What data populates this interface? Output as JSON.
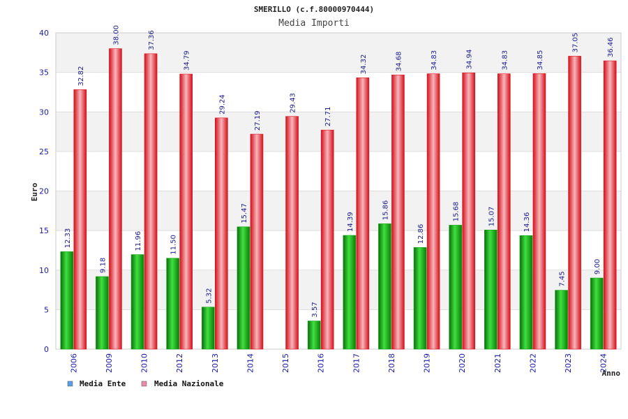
{
  "colors": {
    "series_ente": "#16a316",
    "series_nazionale": "#e0141e",
    "legend_ente": "#5aa0e6",
    "legend_nazionale": "#e88aa8",
    "tick_text": "#1a1aa6",
    "band": "#f2f2f2"
  },
  "chart_data": {
    "type": "bar",
    "title": "SMERILLO (c.f.80000970444)",
    "subtitle": "Media Importi",
    "xlabel": "Anno",
    "ylabel": "Euro",
    "ylim": [
      0,
      40
    ],
    "yticks": [
      0,
      5,
      10,
      15,
      20,
      25,
      30,
      35,
      40
    ],
    "grid": true,
    "legend_position": "bottom-left",
    "categories": [
      "2006",
      "2009",
      "2010",
      "2012",
      "2013",
      "2014",
      "2015",
      "2016",
      "2017",
      "2018",
      "2019",
      "2020",
      "2021",
      "2022",
      "2023",
      "2024"
    ],
    "series": [
      {
        "name": "Media Ente",
        "values": [
          12.33,
          9.18,
          11.96,
          11.5,
          5.32,
          15.47,
          null,
          3.57,
          14.39,
          15.86,
          12.86,
          15.68,
          15.07,
          14.36,
          7.45,
          9.0
        ],
        "labels": [
          "12.33",
          "9.18",
          "11.96",
          "11.50",
          "5.32",
          "15.47",
          "",
          "3.57",
          "14.39",
          "15.86",
          "12.86",
          "15.68",
          "15.07",
          "14.36",
          "7.45",
          "9.00"
        ]
      },
      {
        "name": "Media Nazionale",
        "values": [
          32.82,
          38.0,
          37.36,
          34.79,
          29.24,
          27.19,
          29.43,
          27.71,
          34.32,
          34.68,
          34.83,
          34.94,
          34.83,
          34.85,
          37.05,
          36.46
        ],
        "labels": [
          "32.82",
          "38.00",
          "37.36",
          "34.79",
          "29.24",
          "27.19",
          "29.43",
          "27.71",
          "34.32",
          "34.68",
          "34.83",
          "34.94",
          "34.83",
          "34.85",
          "37.05",
          "36.46"
        ]
      }
    ]
  }
}
